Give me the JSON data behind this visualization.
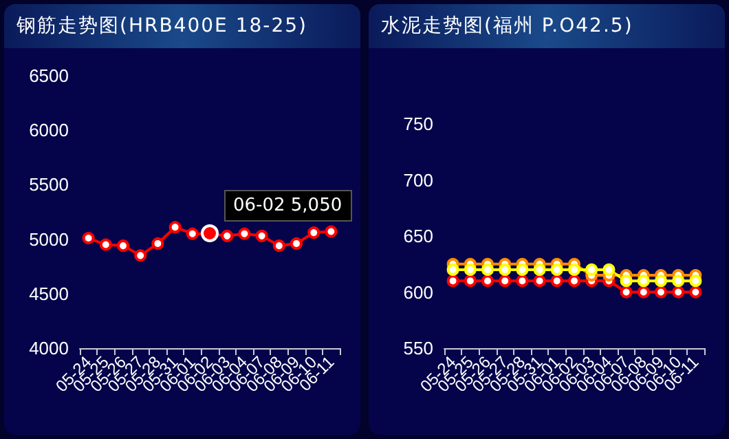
{
  "chart_data": [
    {
      "type": "line",
      "title": "钢筋走势图(HRB400E 18-25)",
      "categories": [
        "05-24",
        "05-25",
        "05-26",
        "05-27",
        "05-28",
        "05-31",
        "06-01",
        "06-02",
        "06-03",
        "06-04",
        "06-07",
        "06-08",
        "06-09",
        "06-10",
        "06-11"
      ],
      "series": [
        {
          "color": "#ff0000",
          "values": [
            5010,
            4950,
            4940,
            4850,
            4960,
            5110,
            5050,
            5050,
            5030,
            5050,
            5030,
            4940,
            4960,
            5060,
            5070
          ]
        }
      ],
      "ylim": [
        4000,
        6500
      ],
      "yticks": [
        4000,
        4500,
        5000,
        5500,
        6000,
        6500
      ],
      "grid": false,
      "marker": "circle",
      "line_style": "solid",
      "annotations": [
        {
          "text": "06-02 5,050",
          "x": "06-02",
          "y": 5050
        }
      ]
    },
    {
      "type": "line",
      "title": "水泥走势图(福州 P.O42.5)",
      "categories": [
        "05-24",
        "05-25",
        "05-26",
        "05-27",
        "05-28",
        "05-31",
        "06-01",
        "06-02",
        "06-03",
        "06-04",
        "06-07",
        "06-08",
        "06-09",
        "06-10",
        "06-11"
      ],
      "series": [
        {
          "color": "#ff0000",
          "values": [
            610,
            610,
            610,
            610,
            610,
            610,
            610,
            610,
            610,
            610,
            600,
            600,
            600,
            600,
            600
          ]
        },
        {
          "color": "#ff8c00",
          "values": [
            625,
            625,
            625,
            625,
            625,
            625,
            625,
            625,
            615,
            615,
            615,
            615,
            615,
            615,
            615
          ]
        },
        {
          "color": "#ffff00",
          "values": [
            620,
            620,
            620,
            620,
            620,
            620,
            620,
            620,
            620,
            620,
            610,
            610,
            610,
            610,
            610
          ]
        }
      ],
      "ylim": [
        550,
        750
      ],
      "yticks": [
        550,
        600,
        650,
        700,
        750
      ],
      "grid": false,
      "marker": "circle",
      "line_style": "solid"
    }
  ]
}
